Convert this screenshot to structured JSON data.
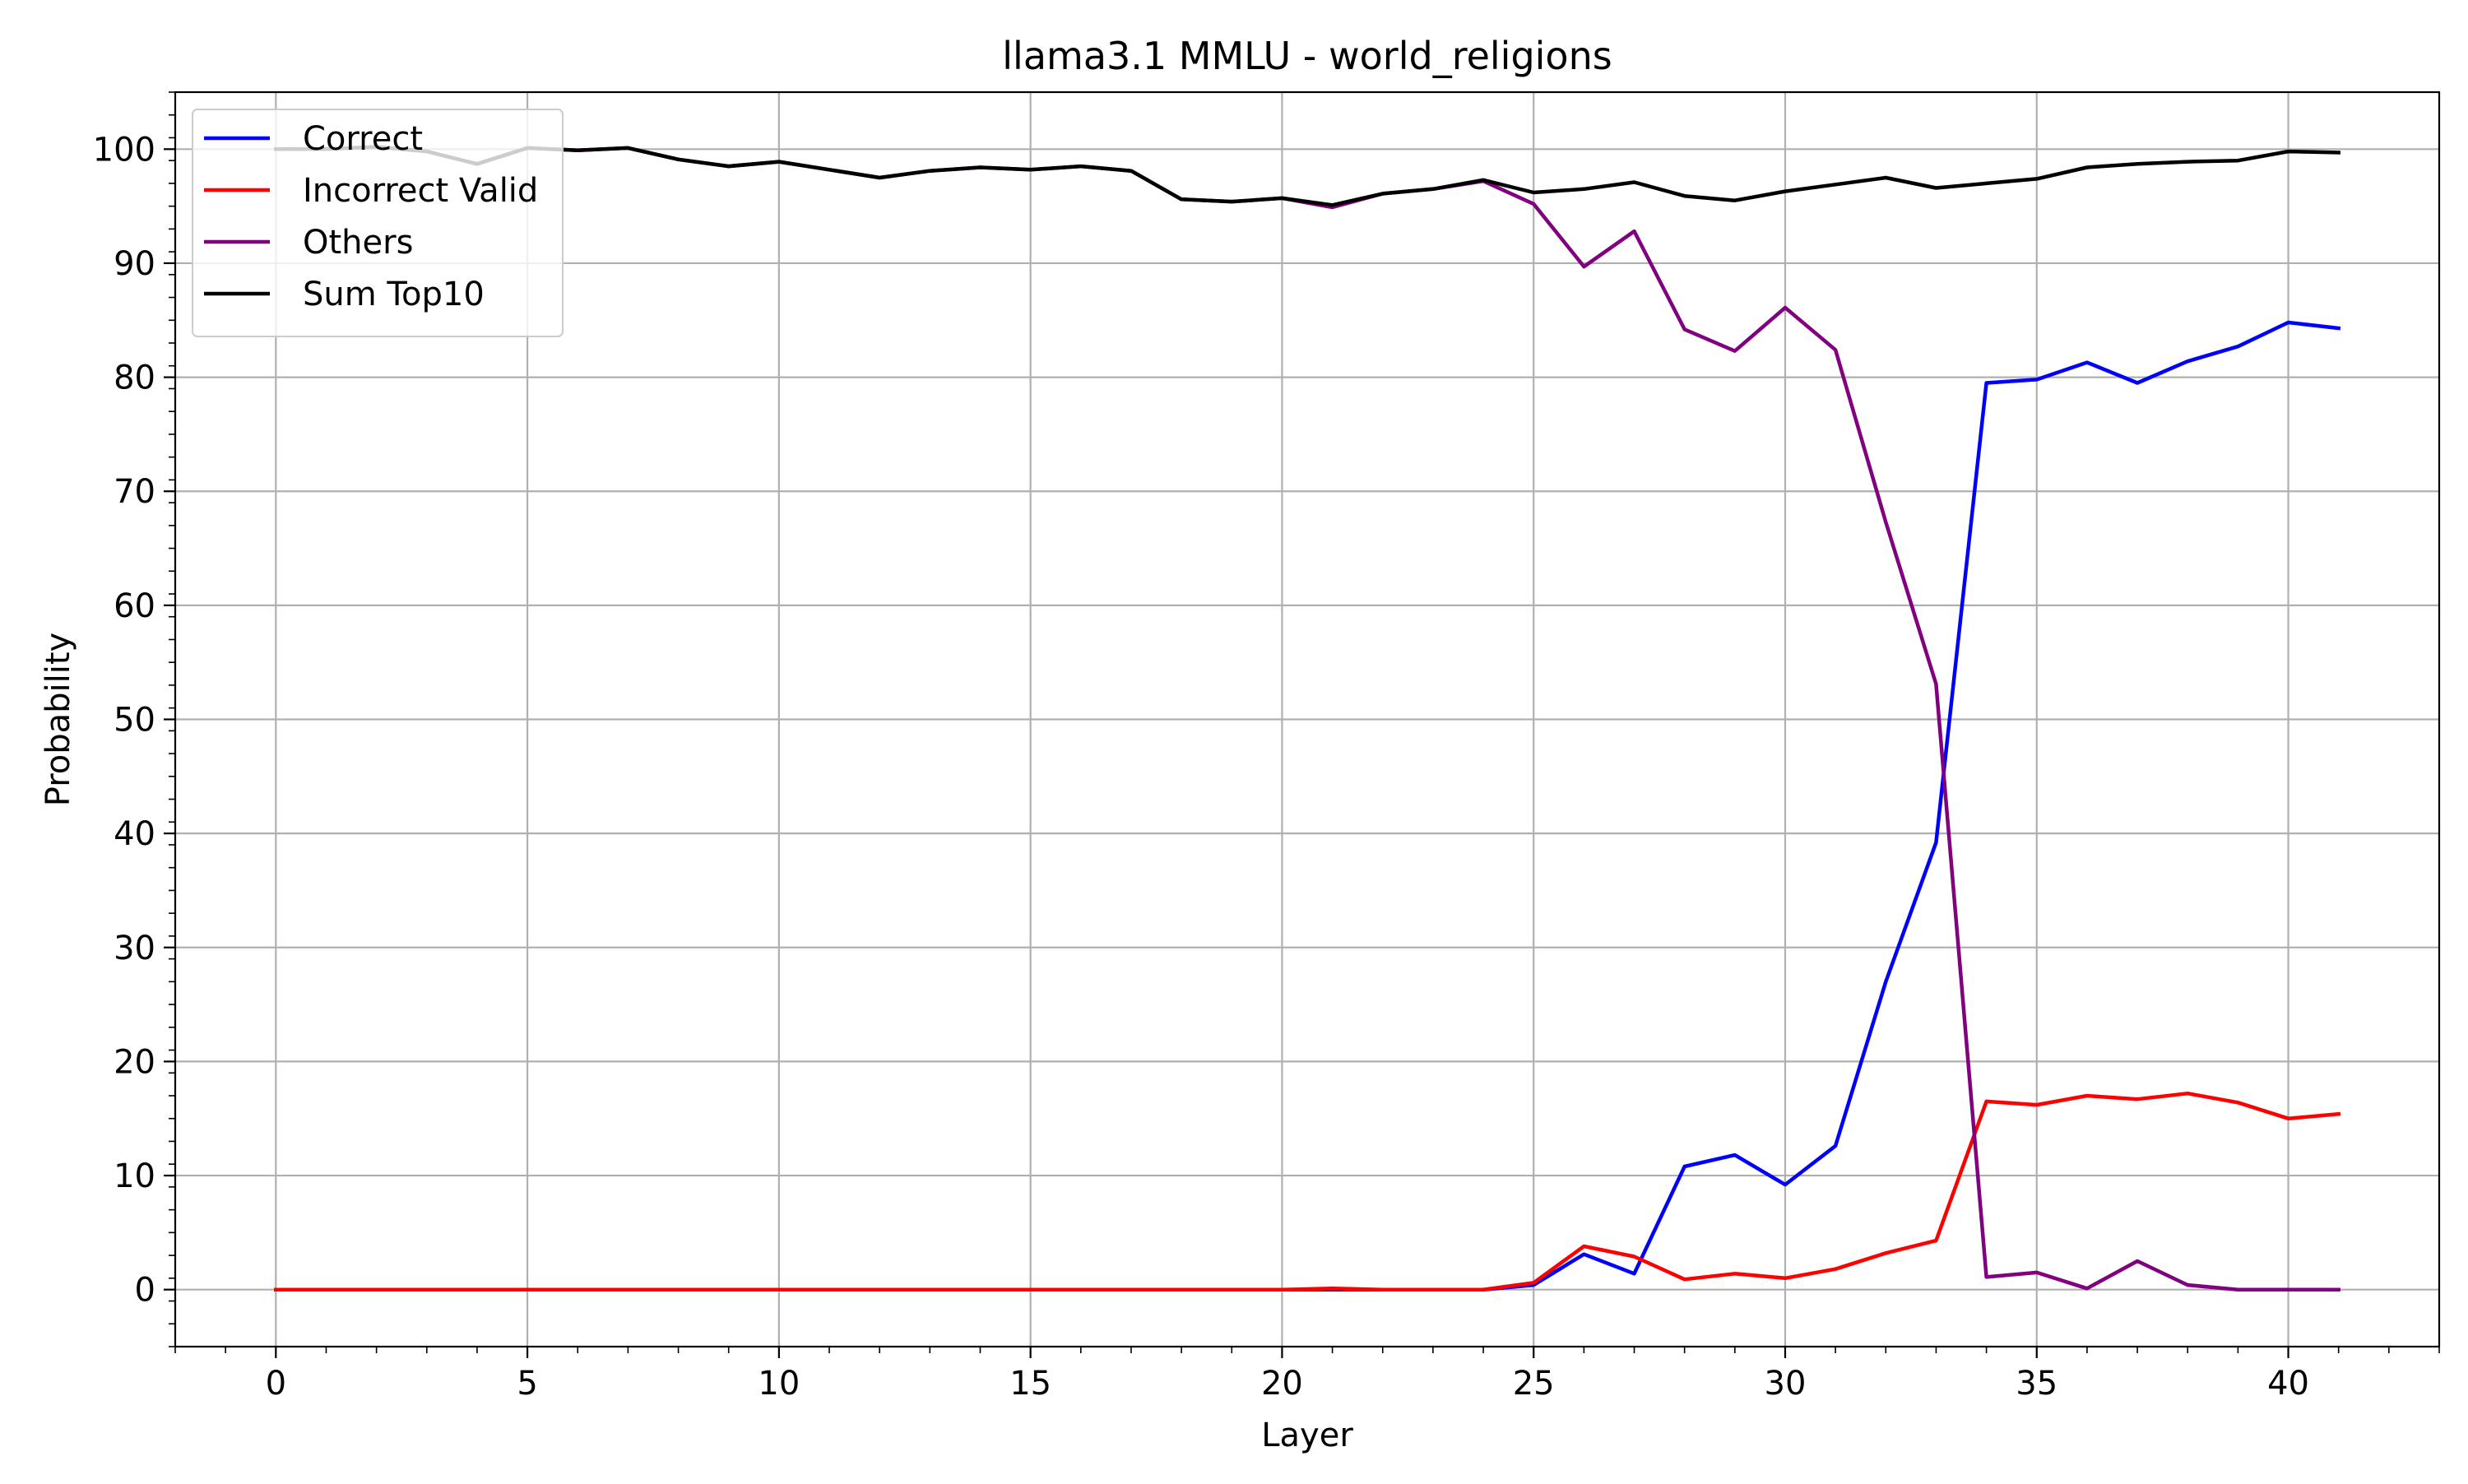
{
  "chart_data": {
    "type": "line",
    "title": "llama3.1 MMLU - world_religions",
    "xlabel": "Layer",
    "ylabel": "Probability",
    "xlim": [
      -2,
      43
    ],
    "ylim": [
      -5,
      105
    ],
    "xticks": [
      0,
      5,
      10,
      15,
      20,
      25,
      30,
      35,
      40
    ],
    "yticks": [
      0,
      10,
      20,
      30,
      40,
      50,
      60,
      70,
      80,
      90,
      100
    ],
    "grid": true,
    "legend_position": "upper left",
    "x": [
      0,
      1,
      2,
      3,
      4,
      5,
      6,
      7,
      8,
      9,
      10,
      11,
      12,
      13,
      14,
      15,
      16,
      17,
      18,
      19,
      20,
      21,
      22,
      23,
      24,
      25,
      26,
      27,
      28,
      29,
      30,
      31,
      32,
      33,
      34,
      35,
      36,
      37,
      38,
      39,
      40,
      41
    ],
    "series": [
      {
        "name": "Correct",
        "color": "#0000ff",
        "values": [
          0,
          0,
          0,
          0,
          0,
          0,
          0,
          0,
          0,
          0,
          0,
          0,
          0,
          0,
          0,
          0,
          0,
          0,
          0,
          0,
          0,
          0,
          0,
          0,
          0,
          0.4,
          3.1,
          1.4,
          10.8,
          11.8,
          9.2,
          12.6,
          27,
          39.2,
          79.5,
          79.8,
          81.3,
          79.5,
          81.4,
          82.7,
          84.8,
          84.3
        ]
      },
      {
        "name": "Incorrect Valid",
        "color": "#ff0000",
        "values": [
          0,
          0,
          0,
          0,
          0,
          0,
          0,
          0,
          0,
          0,
          0,
          0,
          0,
          0,
          0,
          0,
          0,
          0,
          0,
          0,
          0,
          0.1,
          0,
          0,
          0,
          0.6,
          3.8,
          2.9,
          0.9,
          1.4,
          1,
          1.8,
          3.2,
          4.3,
          16.5,
          16.2,
          17,
          16.7,
          17.2,
          16.4,
          15,
          15.4
        ]
      },
      {
        "name": "Others",
        "color": "#800080",
        "values": [
          100,
          100,
          100.2,
          99.8,
          98.7,
          100.1,
          99.9,
          100.1,
          99.1,
          98.5,
          98.9,
          98.2,
          97.5,
          98.1,
          98.4,
          98.2,
          98.5,
          98.1,
          95.6,
          95.4,
          95.7,
          94.9,
          96.1,
          96.5,
          97.2,
          95.2,
          89.7,
          92.8,
          84.2,
          82.3,
          86.1,
          82.4,
          67.3,
          53.1,
          1.1,
          1.5,
          0.1,
          2.5,
          0.4,
          0,
          0,
          0
        ]
      },
      {
        "name": "Sum Top10",
        "color": "#000000",
        "values": [
          100,
          100,
          100.2,
          99.8,
          98.7,
          100.1,
          99.9,
          100.1,
          99.1,
          98.5,
          98.9,
          98.2,
          97.5,
          98.1,
          98.4,
          98.2,
          98.5,
          98.1,
          95.6,
          95.4,
          95.7,
          95.1,
          96.1,
          96.5,
          97.3,
          96.2,
          96.5,
          97.1,
          95.9,
          95.5,
          96.3,
          96.9,
          97.5,
          96.6,
          97,
          97.4,
          98.4,
          98.7,
          98.9,
          99,
          99.8,
          99.7
        ]
      }
    ]
  }
}
